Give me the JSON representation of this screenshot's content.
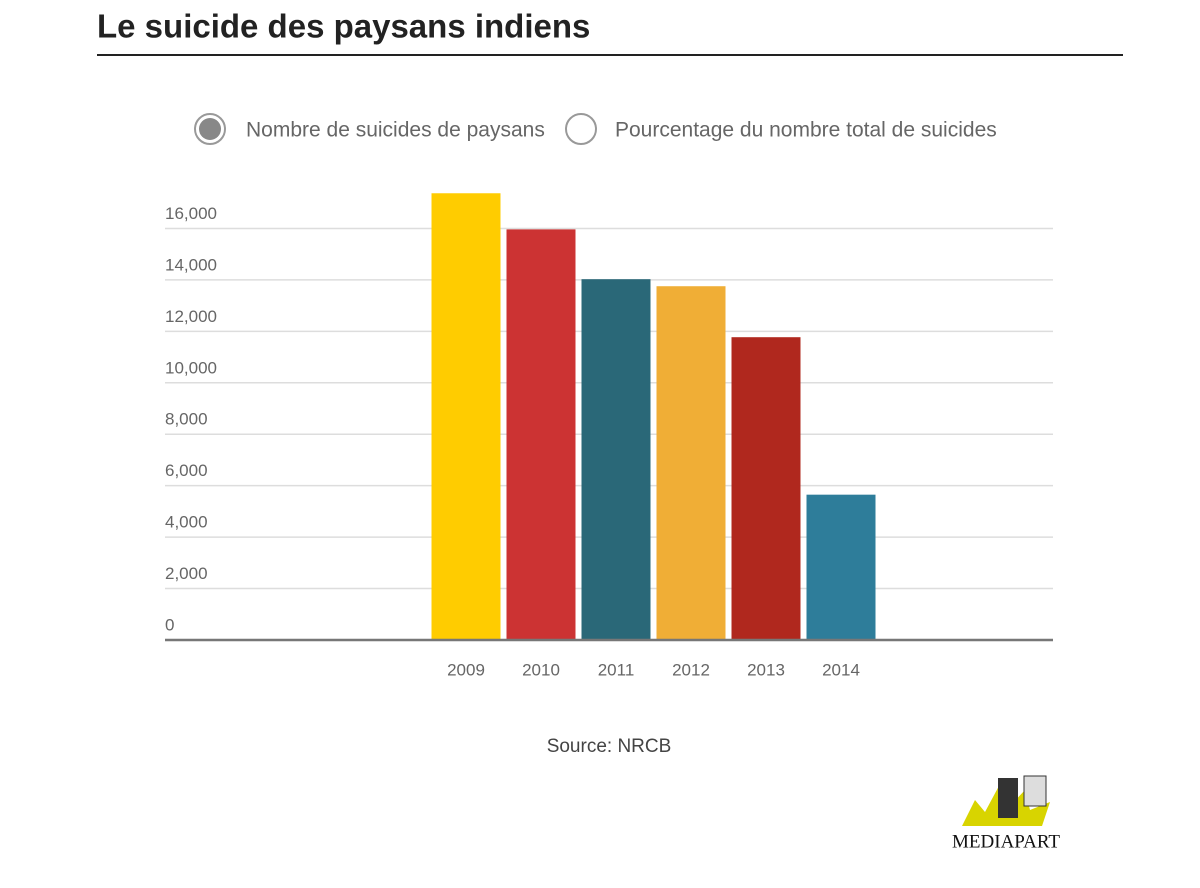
{
  "header": {
    "title": "Le suicide des paysans indiens"
  },
  "view_options": {
    "options": [
      "Nombre de suicides de paysans",
      "Pourcentage du nombre total de suicides"
    ],
    "selected": 0
  },
  "chart_data": {
    "type": "bar",
    "categories": [
      "2009",
      "2010",
      "2011",
      "2012",
      "2013",
      "2014"
    ],
    "values": [
      17368,
      15964,
      14027,
      13754,
      11772,
      5650
    ],
    "colors": [
      "#ffcc00",
      "#cc3333",
      "#2a6878",
      "#f0ae36",
      "#b0281e",
      "#2e7d9a"
    ],
    "ylim": [
      0,
      18000
    ],
    "yticks": [
      0,
      {
        "value": 2000,
        "label": "2,000"
      },
      {
        "value": 4000,
        "label": "4,000"
      },
      {
        "value": 6000,
        "label": "6,000"
      },
      {
        "value": 8000,
        "label": "8,000"
      },
      {
        "value": 10000,
        "label": "10,000"
      },
      {
        "value": 12000,
        "label": "12,000"
      },
      {
        "value": 14000,
        "label": "14,000"
      },
      {
        "value": 16000,
        "label": "16,000"
      }
    ],
    "grid": true
  },
  "source": "Source:  NRCB",
  "logo": "MEDIAPART"
}
